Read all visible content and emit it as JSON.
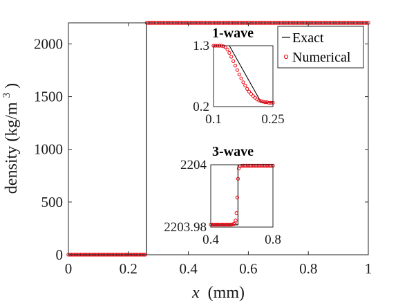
{
  "colors": {
    "exact": "#000000",
    "numerical": "#e8000b",
    "axis": "#262626"
  },
  "chart_data": [
    {
      "type": "line",
      "role": "main",
      "xlabel_var": "x",
      "xlabel_unit": "(mm)",
      "ylabel": "density (kg/m",
      "ylabel_sup": "3",
      "ylabel_close": ")",
      "xlim": [
        0,
        1
      ],
      "ylim": [
        0,
        2200
      ],
      "xticks": [
        0,
        0.2,
        0.4,
        0.6,
        0.8,
        1
      ],
      "xtick_labels": [
        "0",
        "0.2",
        "0.4",
        "0.6",
        "0.8",
        "1"
      ],
      "yticks": [
        0,
        500,
        1000,
        1500,
        2000
      ],
      "ytick_labels": [
        "0",
        "500",
        "1000",
        "1500",
        "2000"
      ],
      "grid": false,
      "series": [
        {
          "name": "Exact",
          "style": "line",
          "x": [
            0,
            0.2604,
            0.2604,
            1
          ],
          "y": [
            1.3,
            1.3,
            2204,
            2204
          ]
        },
        {
          "name": "Numerical",
          "style": "markers",
          "x_range": [
            0,
            1
          ],
          "count": 200,
          "discontinuity": 0.2604,
          "left_value": 1.3,
          "right_value": 2204
        }
      ],
      "legend": {
        "placement": "top-right",
        "entries": [
          "Exact",
          "Numerical"
        ]
      }
    },
    {
      "type": "line",
      "role": "inset",
      "title": "1-wave",
      "xlim": [
        0.1,
        0.25
      ],
      "ylim": [
        0.2,
        1.3
      ],
      "xticks": [
        0.1,
        0.25
      ],
      "xtick_labels": [
        "0.1",
        "0.25"
      ],
      "yticks": [
        0.2,
        1.3
      ],
      "ytick_labels": [
        "0.2",
        "1.3"
      ],
      "series": [
        {
          "name": "Exact",
          "style": "line",
          "x": [
            0.1,
            0.14,
            0.22,
            0.25
          ],
          "y": [
            1.3,
            1.3,
            0.28,
            0.28
          ]
        },
        {
          "name": "Numerical",
          "style": "markers",
          "x": [
            0.1,
            0.105,
            0.11,
            0.115,
            0.12,
            0.125,
            0.13,
            0.135,
            0.14,
            0.145,
            0.15,
            0.155,
            0.16,
            0.165,
            0.17,
            0.175,
            0.18,
            0.185,
            0.19,
            0.195,
            0.2,
            0.205,
            0.21,
            0.215,
            0.22,
            0.225,
            0.23,
            0.235,
            0.24,
            0.245,
            0.25
          ],
          "y": [
            1.3,
            1.3,
            1.3,
            1.3,
            1.3,
            1.29,
            1.27,
            1.23,
            1.17,
            1.1,
            1.02,
            0.94,
            0.86,
            0.78,
            0.71,
            0.64,
            0.58,
            0.52,
            0.47,
            0.43,
            0.39,
            0.36,
            0.33,
            0.31,
            0.3,
            0.29,
            0.28,
            0.28,
            0.27,
            0.27,
            0.27
          ]
        }
      ]
    },
    {
      "type": "line",
      "role": "inset",
      "title": "3-wave",
      "xlim": [
        0.4,
        0.8
      ],
      "ylim": [
        2203.98,
        2204
      ],
      "xticks": [
        0.4,
        0.8
      ],
      "xtick_labels": [
        "0.4",
        "0.8"
      ],
      "yticks": [
        2203.98,
        2204
      ],
      "ytick_labels": [
        "2203.98",
        "2204"
      ],
      "series": [
        {
          "name": "Exact",
          "style": "line",
          "x": [
            0.4,
            0.575,
            0.575,
            0.8
          ],
          "y": [
            2203.9807,
            2203.9807,
            2204.0,
            2204.0
          ]
        },
        {
          "name": "Numerical",
          "style": "markers",
          "x": [
            0.4,
            0.41,
            0.42,
            0.43,
            0.44,
            0.45,
            0.46,
            0.47,
            0.48,
            0.49,
            0.5,
            0.51,
            0.52,
            0.53,
            0.54,
            0.55,
            0.555,
            0.56,
            0.565,
            0.57,
            0.575,
            0.58,
            0.59,
            0.6,
            0.61,
            0.62,
            0.63,
            0.64,
            0.65,
            0.66,
            0.67,
            0.68,
            0.69,
            0.7,
            0.71,
            0.72,
            0.73,
            0.74,
            0.75,
            0.76,
            0.77,
            0.78,
            0.79,
            0.8
          ],
          "y": [
            2203.9808,
            2203.9808,
            2203.9808,
            2203.9808,
            2203.9808,
            2203.9808,
            2203.9808,
            2203.9808,
            2203.9808,
            2203.9808,
            2203.9808,
            2203.9808,
            2203.9808,
            2203.9808,
            2203.9809,
            2203.981,
            2203.9813,
            2203.9822,
            2203.9845,
            2203.9895,
            2203.9955,
            2203.9988,
            2203.9996,
            2203.9997,
            2203.9997,
            2203.9997,
            2203.9997,
            2203.9997,
            2203.9997,
            2203.9997,
            2203.9997,
            2203.9997,
            2203.9997,
            2203.9997,
            2203.9997,
            2203.9997,
            2203.9997,
            2203.9997,
            2203.9997,
            2203.9997,
            2203.9997,
            2203.9997,
            2203.9997,
            2203.9997
          ]
        }
      ]
    }
  ]
}
